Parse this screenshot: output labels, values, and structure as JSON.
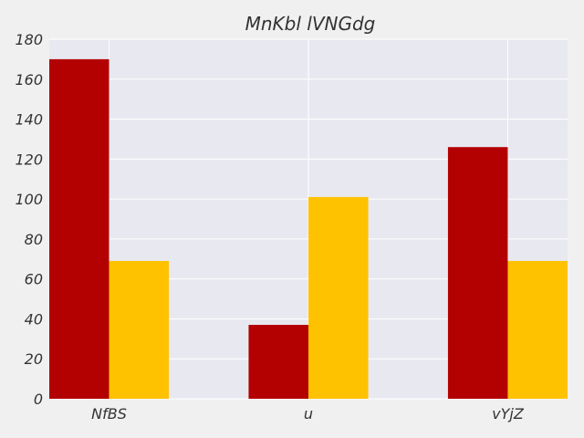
{
  "chart_data": {
    "type": "bar",
    "title": "MnKbl lVNGdg",
    "xlabel": "",
    "ylabel": "",
    "categories": [
      "NfBS",
      "u",
      "vYjZ"
    ],
    "series": [
      {
        "values": [
          170,
          37,
          126
        ],
        "color": "#b30000"
      },
      {
        "values": [
          69,
          101,
          69
        ],
        "color": "#ffc200"
      }
    ],
    "ylim": [
      0,
      180
    ],
    "yticks": [
      0,
      20,
      40,
      60,
      80,
      100,
      120,
      140,
      160,
      180
    ],
    "grid": true,
    "legend": "none",
    "plot_background": "#e8e8f0",
    "grid_color": "#ffffff"
  }
}
